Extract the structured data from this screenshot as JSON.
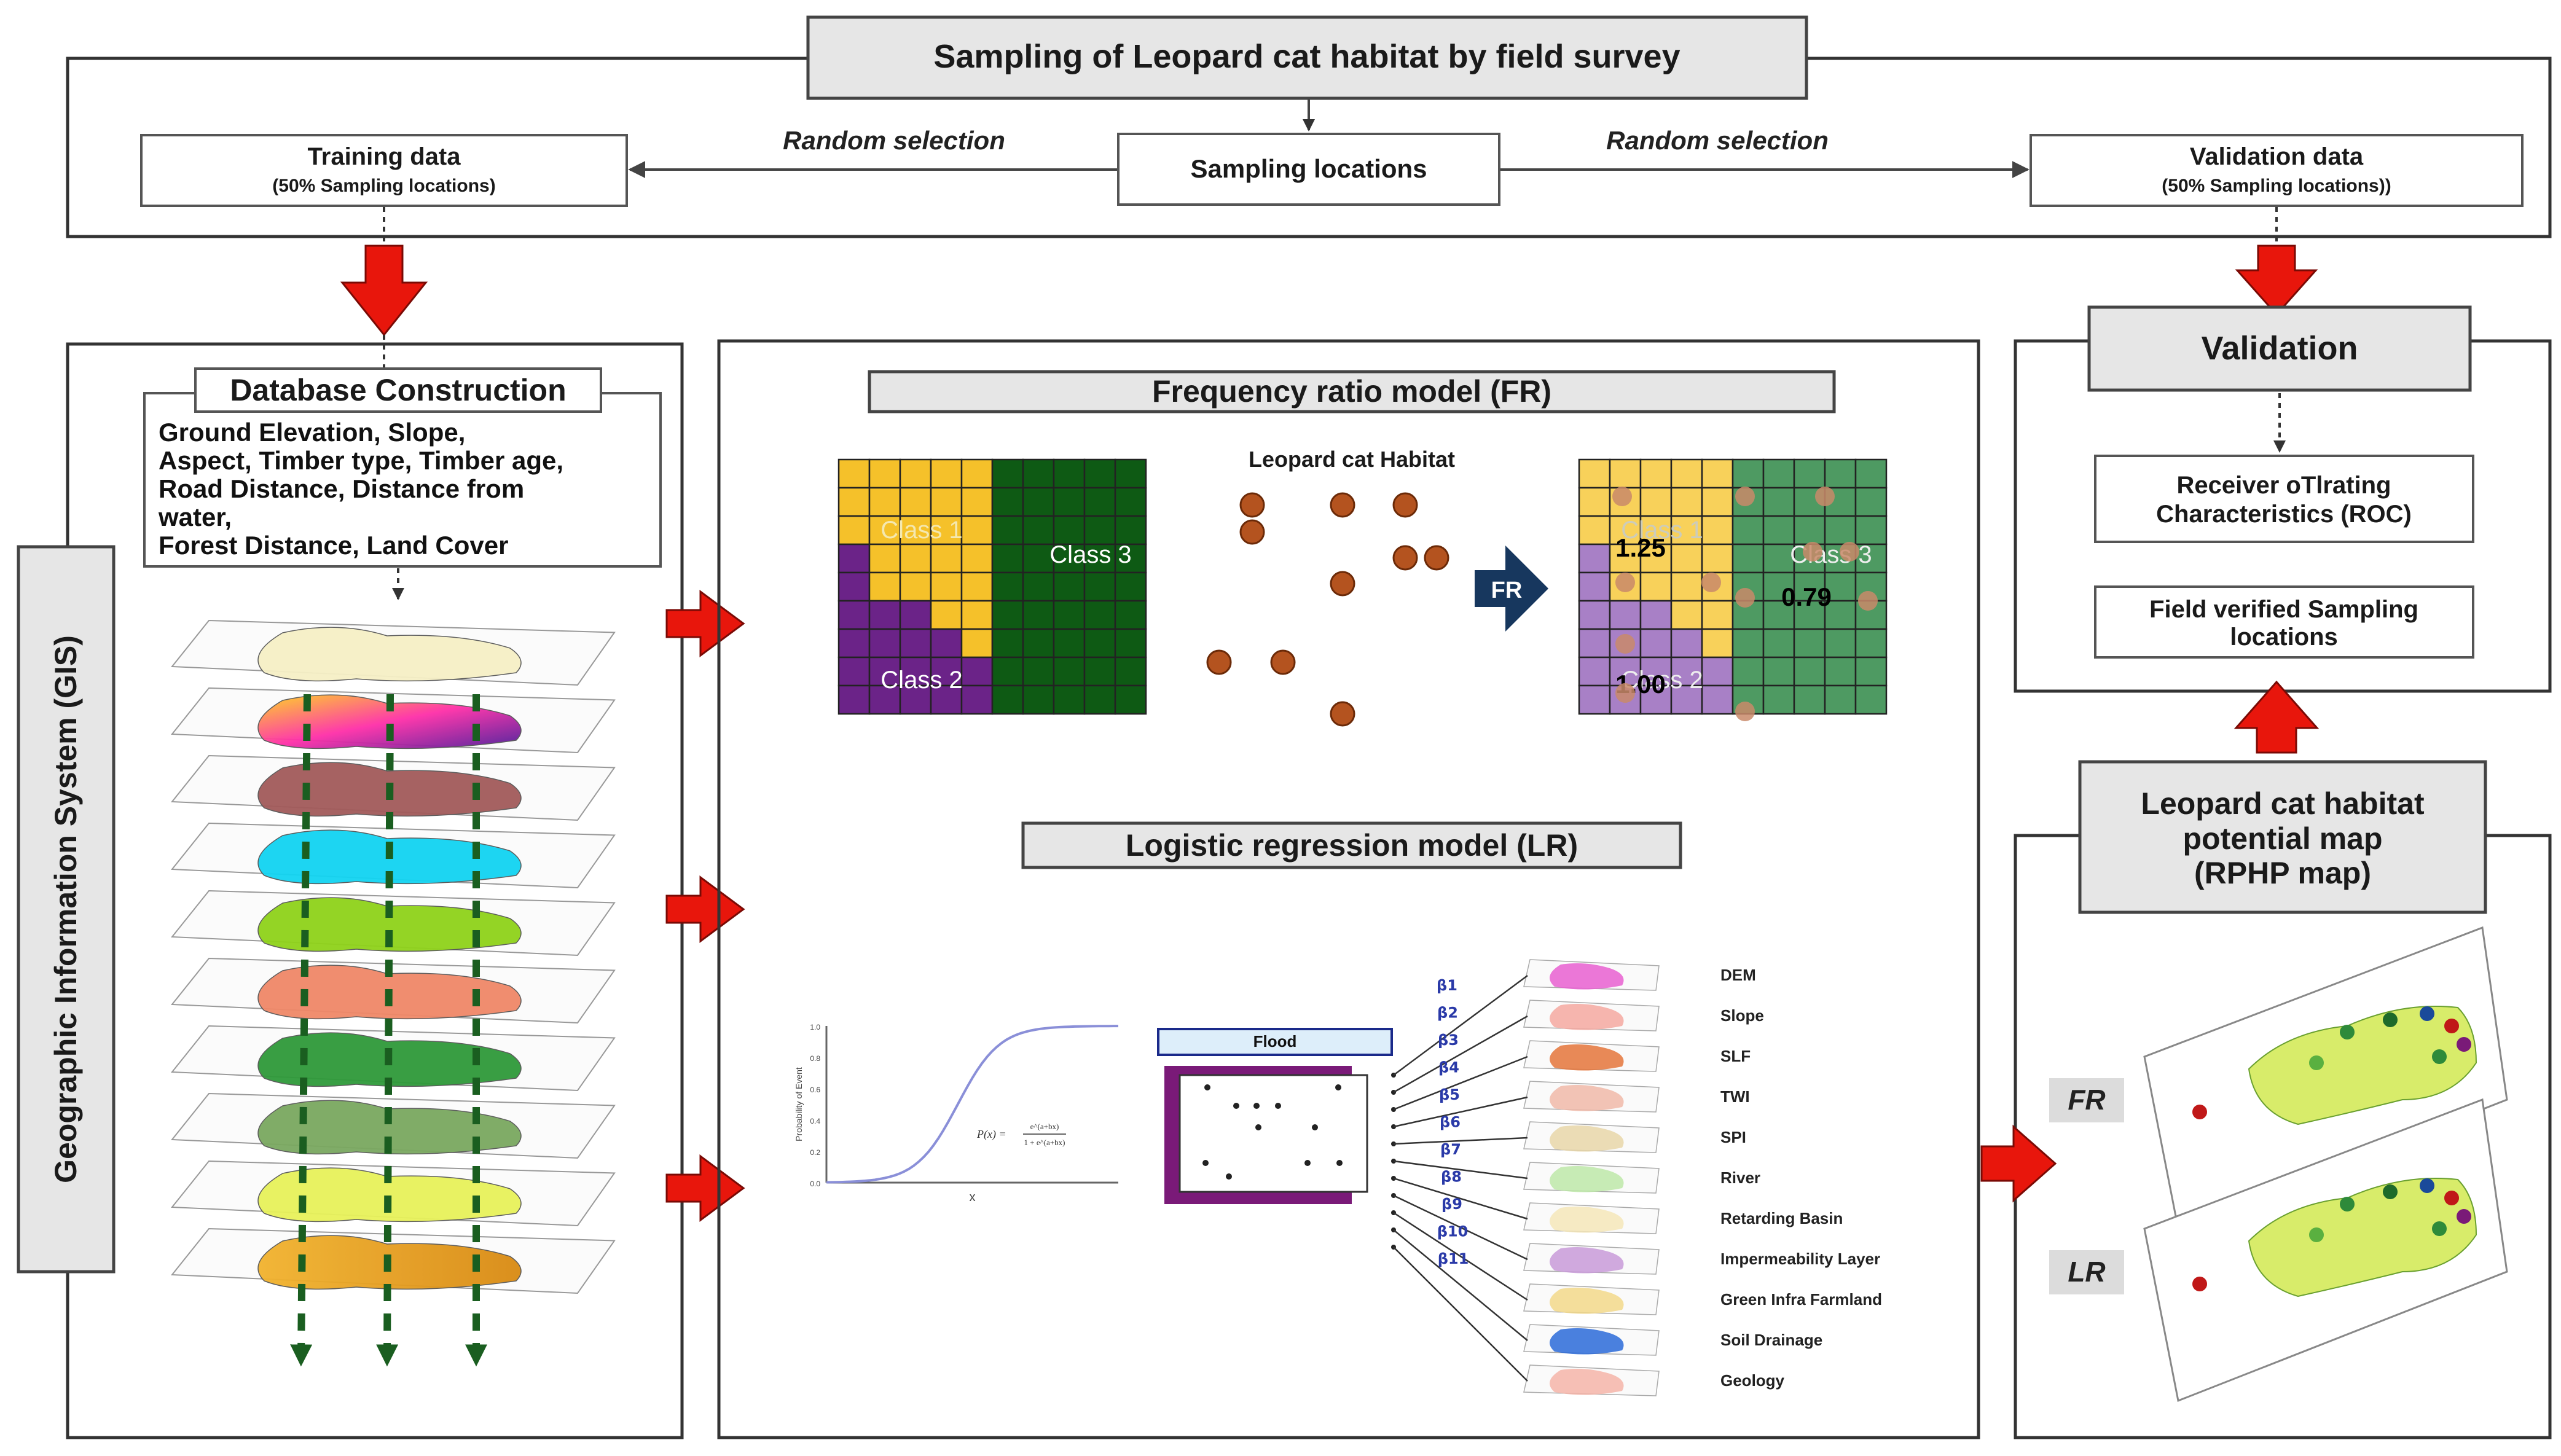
{
  "title": "Sampling of Leopard cat habitat by  field survey",
  "sampling": {
    "center": "Sampling locations",
    "random_left": "Random selection",
    "random_right": "Random selection",
    "training_title": "Training data",
    "training_sub": "(50% Sampling  locations)",
    "validation_title": "Validation data",
    "validation_sub": "(50% Sampling  locations))"
  },
  "gis": {
    "side_label": "Geographic Information System (GIS)",
    "db_title": "Database Construction",
    "db_lines": [
      "Ground Elevation, Slope,",
      "Aspect, Timber type, Timber age,",
      "Road Distance, Distance from",
      "water,",
      "Forest Distance, Land Cover"
    ]
  },
  "fr": {
    "title": "Frequency ratio model (FR)",
    "habitat_label": "Leopard  cat Habitat",
    "class1": "Class 1",
    "class2": "Class 2",
    "class3": "Class 3",
    "arrow_label": "FR",
    "val1": "1.25",
    "val2": "1.00",
    "val3": "0.79"
  },
  "lr": {
    "title": "Logistic regression model (LR)",
    "curve_ylabel": "Probability of Event",
    "curve_xlabel": "x",
    "curve_yticks": [
      "1.0",
      "0.8",
      "0.6",
      "0.4",
      "0.2",
      "0.0"
    ],
    "formula_lhs": "P(x) =",
    "formula_num": "e^(a+bx)",
    "formula_den": "1 + e^(a+bx)",
    "flood_label": "Flood",
    "betas": [
      "β1",
      "β2",
      "β3",
      "β4",
      "β5",
      "β6",
      "β7",
      "β8",
      "β9",
      "β10",
      "β11"
    ],
    "layers": [
      "DEM",
      "Slope",
      "SLF",
      "TWI",
      "SPI",
      "River",
      "Retarding Basin",
      "Impermeability Layer",
      "Green Infra Farmland",
      "Soil Drainage",
      "Geology"
    ]
  },
  "validation": {
    "title": "Validation",
    "roc": [
      "Receiver oTlrating",
      "Characteristics (ROC)"
    ],
    "field": [
      "Field verified Sampling",
      "locations"
    ]
  },
  "map": {
    "title": [
      "Leopard cat habitat",
      "potential map",
      "(RPHP map)"
    ],
    "fr_label": "FR",
    "lr_label": "LR"
  },
  "colors": {
    "arrow_red": "#e8160c",
    "class1": "#f5c12a",
    "class2": "#6b2388",
    "class3": "#0e5a14",
    "fr_arrow": "#17375e",
    "dot": "#b4531f"
  }
}
